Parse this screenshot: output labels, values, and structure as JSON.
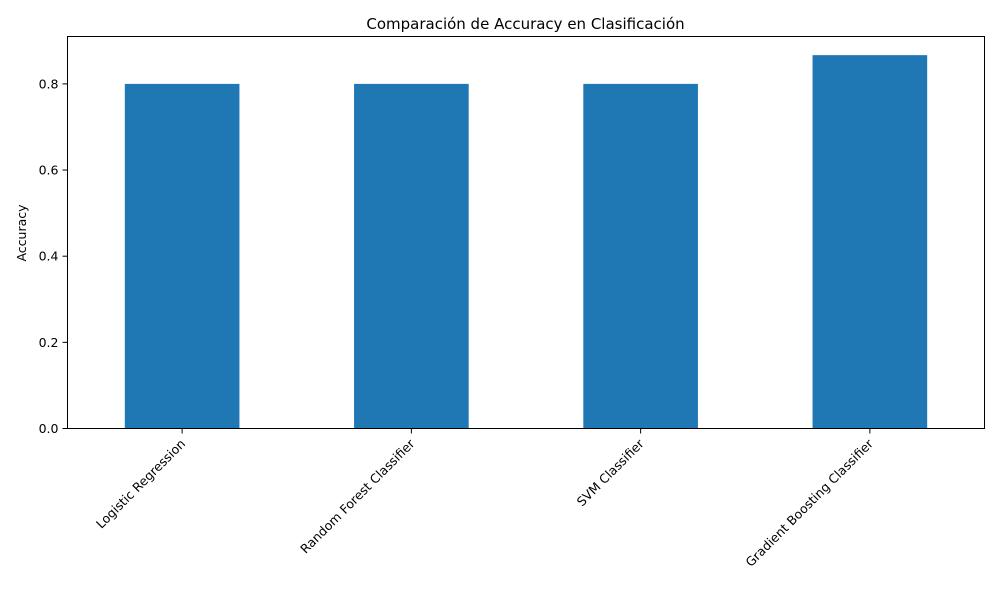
{
  "chart_data": {
    "type": "bar",
    "title": "Comparación de Accuracy en Clasificación",
    "xlabel": "",
    "ylabel": "Accuracy",
    "categories": [
      "Logistic Regression",
      "Random Forest Classifier",
      "SVM Classifier",
      "Gradient Boosting Classifier"
    ],
    "values": [
      0.8,
      0.8,
      0.8,
      0.8667
    ],
    "ylim": [
      0,
      0.91
    ],
    "yticks": [
      0.0,
      0.2,
      0.4,
      0.6,
      0.8
    ],
    "ytick_labels": [
      "0.0",
      "0.2",
      "0.4",
      "0.6",
      "0.8"
    ],
    "bar_color": "#1f77b4",
    "xtick_rotation_deg": 45,
    "grid": false,
    "legend": "none"
  }
}
